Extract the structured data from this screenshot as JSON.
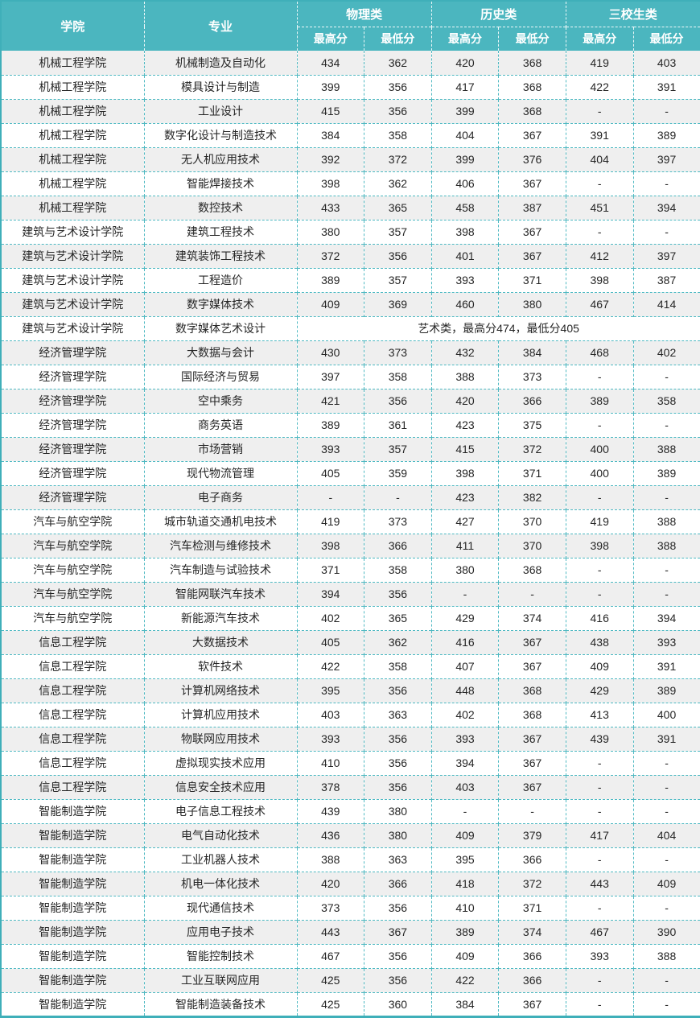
{
  "colors": {
    "header_bg": "#4bb6bf",
    "header_text": "#ffffff",
    "outer_border": "#3fafb9",
    "grid_border": "#4fb9c2",
    "row_alt_bg": "#efefef",
    "row_bg": "#ffffff",
    "body_text": "#262626"
  },
  "chart_data": {
    "type": "table",
    "header": {
      "college": "学院",
      "major": "专业",
      "groups": [
        "物理类",
        "历史类",
        "三校生类"
      ],
      "sub_max": "最高分",
      "sub_min": "最低分"
    },
    "rows": [
      {
        "college": "机械工程学院",
        "major": "机械制造及自动化",
        "scores": [
          "434",
          "362",
          "420",
          "368",
          "419",
          "403"
        ]
      },
      {
        "college": "机械工程学院",
        "major": "模具设计与制造",
        "scores": [
          "399",
          "356",
          "417",
          "368",
          "422",
          "391"
        ]
      },
      {
        "college": "机械工程学院",
        "major": "工业设计",
        "scores": [
          "415",
          "356",
          "399",
          "368",
          "-",
          "-"
        ]
      },
      {
        "college": "机械工程学院",
        "major": "数字化设计与制造技术",
        "scores": [
          "384",
          "358",
          "404",
          "367",
          "391",
          "389"
        ]
      },
      {
        "college": "机械工程学院",
        "major": "无人机应用技术",
        "scores": [
          "392",
          "372",
          "399",
          "376",
          "404",
          "397"
        ]
      },
      {
        "college": "机械工程学院",
        "major": "智能焊接技术",
        "scores": [
          "398",
          "362",
          "406",
          "367",
          "-",
          "-"
        ]
      },
      {
        "college": "机械工程学院",
        "major": "数控技术",
        "scores": [
          "433",
          "365",
          "458",
          "387",
          "451",
          "394"
        ]
      },
      {
        "college": "建筑与艺术设计学院",
        "major": "建筑工程技术",
        "scores": [
          "380",
          "357",
          "398",
          "367",
          "-",
          "-"
        ]
      },
      {
        "college": "建筑与艺术设计学院",
        "major": "建筑装饰工程技术",
        "scores": [
          "372",
          "356",
          "401",
          "367",
          "412",
          "397"
        ]
      },
      {
        "college": "建筑与艺术设计学院",
        "major": "工程造价",
        "scores": [
          "389",
          "357",
          "393",
          "371",
          "398",
          "387"
        ]
      },
      {
        "college": "建筑与艺术设计学院",
        "major": "数字媒体技术",
        "scores": [
          "409",
          "369",
          "460",
          "380",
          "467",
          "414"
        ]
      },
      {
        "college": "建筑与艺术设计学院",
        "major": "数字媒体艺术设计",
        "note": "艺术类，最高分474，最低分405"
      },
      {
        "college": "经济管理学院",
        "major": "大数据与会计",
        "scores": [
          "430",
          "373",
          "432",
          "384",
          "468",
          "402"
        ]
      },
      {
        "college": "经济管理学院",
        "major": "国际经济与贸易",
        "scores": [
          "397",
          "358",
          "388",
          "373",
          "-",
          "-"
        ]
      },
      {
        "college": "经济管理学院",
        "major": "空中乘务",
        "scores": [
          "421",
          "356",
          "420",
          "366",
          "389",
          "358"
        ]
      },
      {
        "college": "经济管理学院",
        "major": "商务英语",
        "scores": [
          "389",
          "361",
          "423",
          "375",
          "-",
          "-"
        ]
      },
      {
        "college": "经济管理学院",
        "major": "市场营销",
        "scores": [
          "393",
          "357",
          "415",
          "372",
          "400",
          "388"
        ]
      },
      {
        "college": "经济管理学院",
        "major": "现代物流管理",
        "scores": [
          "405",
          "359",
          "398",
          "371",
          "400",
          "389"
        ]
      },
      {
        "college": "经济管理学院",
        "major": "电子商务",
        "scores": [
          "-",
          "-",
          "423",
          "382",
          "-",
          "-"
        ]
      },
      {
        "college": "汽车与航空学院",
        "major": "城市轨道交通机电技术",
        "scores": [
          "419",
          "373",
          "427",
          "370",
          "419",
          "388"
        ]
      },
      {
        "college": "汽车与航空学院",
        "major": "汽车检测与维修技术",
        "scores": [
          "398",
          "366",
          "411",
          "370",
          "398",
          "388"
        ]
      },
      {
        "college": "汽车与航空学院",
        "major": "汽车制造与试验技术",
        "scores": [
          "371",
          "358",
          "380",
          "368",
          "-",
          "-"
        ]
      },
      {
        "college": "汽车与航空学院",
        "major": "智能网联汽车技术",
        "scores": [
          "394",
          "356",
          "-",
          "-",
          "-",
          "-"
        ]
      },
      {
        "college": "汽车与航空学院",
        "major": "新能源汽车技术",
        "scores": [
          "402",
          "365",
          "429",
          "374",
          "416",
          "394"
        ]
      },
      {
        "college": "信息工程学院",
        "major": "大数据技术",
        "scores": [
          "405",
          "362",
          "416",
          "367",
          "438",
          "393"
        ]
      },
      {
        "college": "信息工程学院",
        "major": "软件技术",
        "scores": [
          "422",
          "358",
          "407",
          "367",
          "409",
          "391"
        ]
      },
      {
        "college": "信息工程学院",
        "major": "计算机网络技术",
        "scores": [
          "395",
          "356",
          "448",
          "368",
          "429",
          "389"
        ]
      },
      {
        "college": "信息工程学院",
        "major": "计算机应用技术",
        "scores": [
          "403",
          "363",
          "402",
          "368",
          "413",
          "400"
        ]
      },
      {
        "college": "信息工程学院",
        "major": "物联网应用技术",
        "scores": [
          "393",
          "356",
          "393",
          "367",
          "439",
          "391"
        ]
      },
      {
        "college": "信息工程学院",
        "major": "虚拟现实技术应用",
        "scores": [
          "410",
          "356",
          "394",
          "367",
          "-",
          "-"
        ]
      },
      {
        "college": "信息工程学院",
        "major": "信息安全技术应用",
        "scores": [
          "378",
          "356",
          "403",
          "367",
          "-",
          "-"
        ]
      },
      {
        "college": "智能制造学院",
        "major": "电子信息工程技术",
        "scores": [
          "439",
          "380",
          "-",
          "-",
          "-",
          "-"
        ]
      },
      {
        "college": "智能制造学院",
        "major": "电气自动化技术",
        "scores": [
          "436",
          "380",
          "409",
          "379",
          "417",
          "404"
        ]
      },
      {
        "college": "智能制造学院",
        "major": "工业机器人技术",
        "scores": [
          "388",
          "363",
          "395",
          "366",
          "-",
          "-"
        ]
      },
      {
        "college": "智能制造学院",
        "major": "机电一体化技术",
        "scores": [
          "420",
          "366",
          "418",
          "372",
          "443",
          "409"
        ]
      },
      {
        "college": "智能制造学院",
        "major": "现代通信技术",
        "scores": [
          "373",
          "356",
          "410",
          "371",
          "-",
          "-"
        ]
      },
      {
        "college": "智能制造学院",
        "major": "应用电子技术",
        "scores": [
          "443",
          "367",
          "389",
          "374",
          "467",
          "390"
        ]
      },
      {
        "college": "智能制造学院",
        "major": "智能控制技术",
        "scores": [
          "467",
          "356",
          "409",
          "366",
          "393",
          "388"
        ]
      },
      {
        "college": "智能制造学院",
        "major": "工业互联网应用",
        "scores": [
          "425",
          "356",
          "422",
          "366",
          "-",
          "-"
        ]
      },
      {
        "college": "智能制造学院",
        "major": "智能制造装备技术",
        "scores": [
          "425",
          "360",
          "384",
          "367",
          "-",
          "-"
        ]
      }
    ]
  }
}
